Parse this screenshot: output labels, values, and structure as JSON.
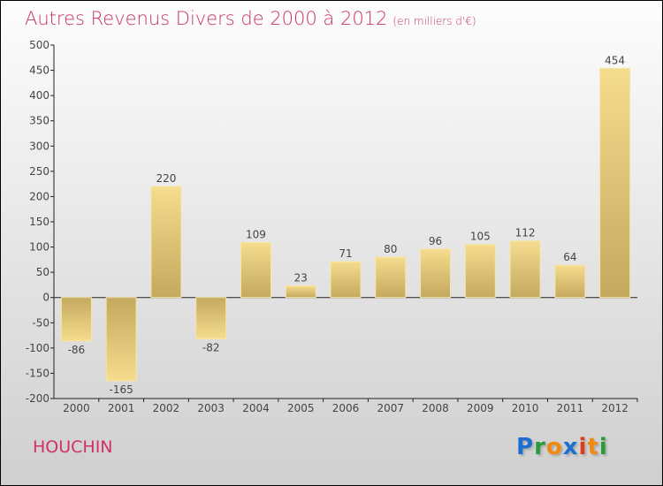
{
  "header": {
    "title": "Autres Revenus Divers de 2000 à 2012",
    "unit": "(en milliers d'€)"
  },
  "footer": {
    "town": "HOUCHIN",
    "logo": "Proxiti"
  },
  "colors": {
    "title": "#c8326a",
    "bar_light": "#f5dc8e",
    "bar_dark": "#c4a95e"
  },
  "chart_data": {
    "type": "bar",
    "title": "Autres Revenus Divers de 2000 à 2012",
    "categories": [
      "2000",
      "2001",
      "2002",
      "2003",
      "2004",
      "2005",
      "2006",
      "2007",
      "2008",
      "2009",
      "2010",
      "2011",
      "2012"
    ],
    "values": [
      -86,
      -165,
      220,
      -82,
      109,
      23,
      71,
      80,
      96,
      105,
      112,
      64,
      454
    ],
    "ylim": [
      -200,
      500
    ],
    "yticks": [
      500,
      450,
      400,
      350,
      300,
      250,
      200,
      150,
      100,
      50,
      0,
      -50,
      -100,
      -150,
      -200
    ],
    "xlabel": "",
    "ylabel": "",
    "grid": false,
    "legend": "none"
  }
}
